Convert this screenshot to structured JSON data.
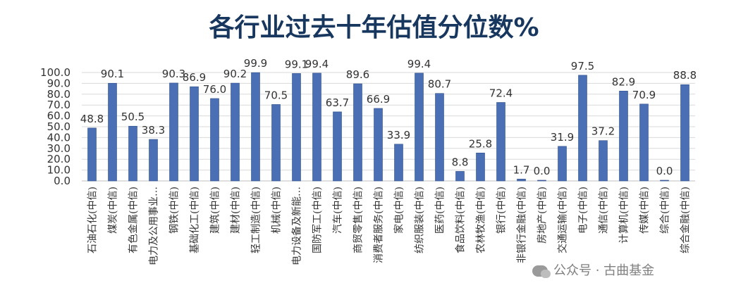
{
  "chart_data": {
    "type": "bar",
    "title": "各行业过去十年估值分位数%",
    "xlabel": "",
    "ylabel": "",
    "ylim": [
      0,
      100
    ],
    "yticks": [
      "100.0",
      "90.0",
      "80.0",
      "70.0",
      "60.0",
      "50.0",
      "40.0",
      "30.0",
      "20.0",
      "10.0",
      "0.0"
    ],
    "grid": true,
    "bar_color": "#4a6fb5",
    "categories": [
      "石油石化(中信)",
      "煤炭(中信)",
      "有色金属(中信)",
      "电力及公用事业…",
      "钢铁(中信)",
      "基础化工(中信)",
      "建筑(中信)",
      "建材(中信)",
      "轻工制造(中信)",
      "机械(中信)",
      "电力设备及新能…",
      "国防军工(中信)",
      "汽车(中信)",
      "商贸零售(中信)",
      "消费者服务(中信)",
      "家电(中信)",
      "纺织服装(中信)",
      "医药(中信)",
      "食品饮料(中信)",
      "农林牧渔(中信)",
      "银行(中信)",
      "非银行金融(中信)",
      "房地产(中信)",
      "交通运输(中信)",
      "电子(中信)",
      "通信(中信)",
      "计算机(中信)",
      "传媒(中信)",
      "综合(中信)",
      "综合金融(中信)"
    ],
    "values": [
      48.8,
      90.1,
      50.5,
      38.3,
      90.3,
      86.9,
      76.0,
      90.2,
      99.9,
      70.5,
      99.1,
      99.4,
      63.7,
      89.6,
      66.9,
      33.9,
      99.4,
      80.7,
      8.8,
      25.8,
      72.4,
      1.7,
      0.0,
      31.9,
      97.5,
      37.2,
      82.9,
      70.9,
      0.0,
      88.8
    ],
    "data_labels": [
      "48.8",
      "90.1",
      "50.5",
      "38.3",
      "90.3",
      "86.9",
      "76.0",
      "90.2",
      "99.9",
      "70.5",
      "99.1",
      "99.4",
      "63.7",
      "89.6",
      "66.9",
      "33.9",
      "99.4",
      "80.7",
      "8.8",
      "25.8",
      "72.4",
      "1.7",
      "0.0",
      "31.9",
      "97.5",
      "37.2",
      "82.9",
      "70.9",
      "0.0",
      "88.8"
    ]
  },
  "watermark": "公众号 · 古曲基金"
}
